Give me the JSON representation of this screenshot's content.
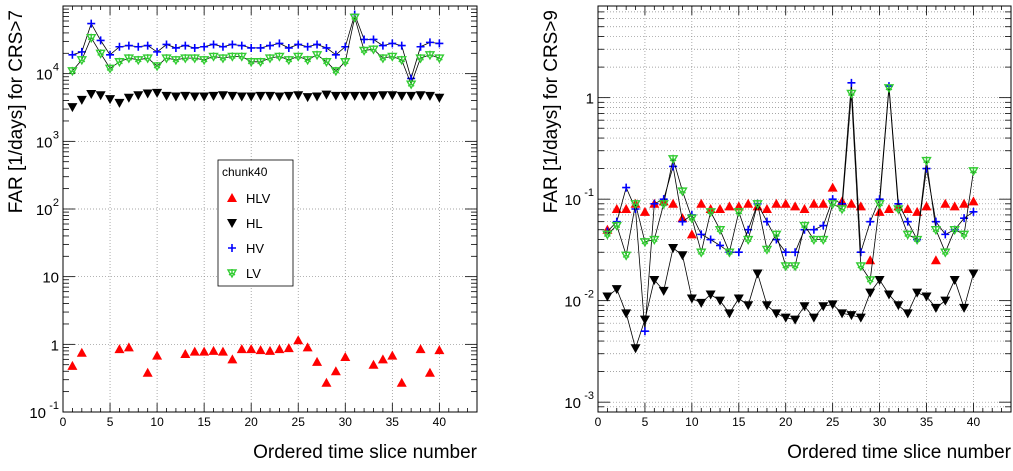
{
  "chart_data": [
    {
      "type": "scatter",
      "ylabel": "FAR [1/days] for CRS>7",
      "xlabel": "Ordered time slice number",
      "xlim": [
        0,
        44
      ],
      "ylim": [
        0.1,
        100000
      ],
      "yscale": "log",
      "x_ticks": [
        0,
        5,
        10,
        15,
        20,
        25,
        30,
        35,
        40
      ],
      "y_tick_labels": [
        {
          "value": 0.1,
          "base": "10",
          "exp": "-1"
        },
        {
          "value": 1,
          "base": "1",
          "exp": ""
        },
        {
          "value": 10,
          "base": "10",
          "exp": ""
        },
        {
          "value": 100,
          "base": "10",
          "exp": "2"
        },
        {
          "value": 1000,
          "base": "10",
          "exp": "3"
        },
        {
          "value": 10000,
          "base": "10",
          "exp": "4"
        }
      ],
      "grid": true,
      "legend": {
        "title": "chunk40",
        "placement": "center",
        "entries": [
          {
            "label": "HLV",
            "color": "#ff0000",
            "marker": "triangle-up"
          },
          {
            "label": "HL",
            "color": "#000000",
            "marker": "triangle-down"
          },
          {
            "label": "HV",
            "color": "#0000ff",
            "marker": "plus"
          },
          {
            "label": "LV",
            "color": "#33cc33",
            "marker": "star-triangle"
          }
        ]
      },
      "series": [
        {
          "name": "HLV",
          "color": "#ff0000",
          "marker": "triangle-up",
          "line": false,
          "x": [
            1,
            2,
            6,
            7,
            9,
            10,
            13,
            14,
            15,
            16,
            17,
            18,
            19,
            20,
            21,
            22,
            23,
            24,
            25,
            26,
            27,
            28,
            29,
            30,
            33,
            34,
            35,
            36,
            38,
            39,
            40
          ],
          "y": [
            0.48,
            0.75,
            0.85,
            0.9,
            0.38,
            0.68,
            0.72,
            0.78,
            0.78,
            0.8,
            0.78,
            0.6,
            0.85,
            0.85,
            0.82,
            0.8,
            0.85,
            0.88,
            1.15,
            0.9,
            0.55,
            0.27,
            0.4,
            0.65,
            0.5,
            0.6,
            0.68,
            0.27,
            0.85,
            0.38,
            0.82
          ]
        },
        {
          "name": "HL",
          "color": "#000000",
          "marker": "triangle-down",
          "line": false,
          "x": [
            1,
            2,
            3,
            4,
            5,
            6,
            7,
            8,
            9,
            10,
            11,
            12,
            13,
            14,
            15,
            16,
            17,
            18,
            19,
            20,
            21,
            22,
            23,
            24,
            25,
            26,
            27,
            28,
            29,
            30,
            31,
            32,
            33,
            34,
            35,
            36,
            37,
            38,
            39,
            40
          ],
          "y": [
            3200,
            4100,
            5000,
            4800,
            4200,
            3700,
            4400,
            4800,
            5100,
            5200,
            4700,
            4600,
            4700,
            4600,
            4600,
            4700,
            4800,
            4700,
            4600,
            4600,
            4700,
            4700,
            4600,
            4700,
            4800,
            4500,
            4600,
            4900,
            4700,
            4700,
            4700,
            4700,
            4700,
            4800,
            4800,
            4700,
            4700,
            4800,
            4700,
            4400
          ]
        },
        {
          "name": "HV",
          "color": "#0000ff",
          "marker": "plus",
          "line": true,
          "x": [
            1,
            2,
            3,
            4,
            5,
            6,
            7,
            8,
            9,
            10,
            11,
            12,
            13,
            14,
            15,
            16,
            17,
            18,
            19,
            20,
            21,
            22,
            23,
            24,
            25,
            26,
            27,
            28,
            29,
            30,
            31,
            32,
            33,
            34,
            35,
            36,
            37,
            38,
            39,
            40
          ],
          "y": [
            19000,
            21000,
            55000,
            31000,
            19000,
            25000,
            26000,
            25000,
            26000,
            21000,
            27000,
            24000,
            26000,
            24000,
            25000,
            27000,
            25000,
            27000,
            26000,
            24000,
            24000,
            26000,
            28000,
            24000,
            27000,
            25000,
            27000,
            24000,
            19000,
            25000,
            75000,
            32000,
            32000,
            26000,
            28000,
            26000,
            8500,
            25000,
            29000,
            28000
          ]
        },
        {
          "name": "LV",
          "color": "#33cc33",
          "marker": "star-triangle",
          "line": true,
          "x": [
            1,
            2,
            3,
            4,
            5,
            6,
            7,
            8,
            9,
            10,
            11,
            12,
            13,
            14,
            15,
            16,
            17,
            18,
            19,
            20,
            21,
            22,
            23,
            24,
            25,
            26,
            27,
            28,
            29,
            30,
            31,
            32,
            33,
            34,
            35,
            36,
            37,
            38,
            39,
            40
          ],
          "y": [
            11000,
            16000,
            34000,
            20000,
            12000,
            15000,
            17000,
            16000,
            17000,
            13000,
            17000,
            16000,
            17000,
            17000,
            16000,
            18000,
            17000,
            18000,
            18000,
            15000,
            15000,
            17000,
            18000,
            16000,
            18000,
            16000,
            19000,
            15000,
            11000,
            15000,
            68000,
            22000,
            23000,
            17000,
            18000,
            16000,
            7000,
            17000,
            19000,
            17000
          ]
        }
      ]
    },
    {
      "type": "scatter",
      "ylabel": "FAR [1/days] for CRS>9",
      "xlabel": "Ordered time slice number",
      "xlim": [
        0,
        44
      ],
      "ylim": [
        0.0008,
        8
      ],
      "yscale": "log",
      "x_ticks": [
        0,
        5,
        10,
        15,
        20,
        25,
        30,
        35,
        40
      ],
      "y_tick_labels": [
        {
          "value": 0.001,
          "base": "10",
          "exp": "-3"
        },
        {
          "value": 0.01,
          "base": "10",
          "exp": "-2"
        },
        {
          "value": 0.1,
          "base": "10",
          "exp": "-1"
        },
        {
          "value": 1,
          "base": "1",
          "exp": ""
        }
      ],
      "grid": true,
      "series": [
        {
          "name": "HLV",
          "color": "#ff0000",
          "marker": "triangle-up",
          "line": false,
          "x": [
            1,
            2,
            3,
            4,
            5,
            6,
            7,
            8,
            9,
            10,
            11,
            12,
            13,
            14,
            15,
            16,
            17,
            18,
            19,
            20,
            21,
            22,
            23,
            24,
            25,
            26,
            27,
            28,
            29,
            30,
            31,
            32,
            33,
            34,
            35,
            36,
            37,
            38,
            39,
            40
          ],
          "y": [
            0.05,
            0.08,
            0.08,
            0.09,
            0.075,
            0.09,
            0.095,
            0.09,
            0.065,
            0.045,
            0.09,
            0.08,
            0.08,
            0.085,
            0.085,
            0.09,
            0.085,
            0.08,
            0.09,
            0.09,
            0.085,
            0.08,
            0.09,
            0.09,
            0.13,
            0.095,
            0.09,
            0.085,
            0.025,
            0.075,
            0.08,
            0.085,
            0.08,
            0.075,
            0.085,
            0.025,
            0.09,
            0.085,
            0.09,
            0.095
          ]
        },
        {
          "name": "HL",
          "color": "#000000",
          "marker": "triangle-down",
          "line": true,
          "x": [
            1,
            2,
            3,
            4,
            5,
            6,
            7,
            8,
            9,
            10,
            11,
            12,
            13,
            14,
            15,
            16,
            17,
            18,
            19,
            20,
            21,
            22,
            23,
            24,
            25,
            26,
            27,
            28,
            29,
            30,
            31,
            32,
            33,
            34,
            35,
            36,
            37,
            38,
            39,
            40
          ],
          "y": [
            0.011,
            0.013,
            0.0075,
            0.0034,
            0.0065,
            0.016,
            0.0125,
            0.033,
            0.028,
            0.0105,
            0.0095,
            0.0115,
            0.01,
            0.0075,
            0.0105,
            0.009,
            0.0185,
            0.009,
            0.0075,
            0.0068,
            0.0065,
            0.0088,
            0.0068,
            0.0088,
            0.0092,
            0.0075,
            0.0072,
            0.0068,
            0.012,
            0.016,
            0.0115,
            0.009,
            0.0075,
            0.012,
            0.011,
            0.0085,
            0.01,
            0.016,
            0.0085,
            0.0185
          ]
        },
        {
          "name": "HV",
          "color": "#0000ff",
          "marker": "plus",
          "line": true,
          "x": [
            1,
            2,
            3,
            4,
            5,
            6,
            7,
            8,
            9,
            10,
            11,
            12,
            13,
            14,
            15,
            16,
            17,
            18,
            19,
            20,
            21,
            22,
            23,
            24,
            25,
            26,
            27,
            28,
            29,
            30,
            31,
            32,
            33,
            34,
            35,
            36,
            37,
            38,
            39,
            40
          ],
          "y": [
            0.048,
            0.06,
            0.13,
            0.08,
            0.005,
            0.09,
            0.1,
            0.21,
            0.06,
            0.07,
            0.045,
            0.04,
            0.035,
            0.03,
            0.03,
            0.05,
            0.09,
            0.06,
            0.04,
            0.03,
            0.03,
            0.05,
            0.05,
            0.055,
            0.1,
            0.09,
            1.4,
            0.03,
            0.06,
            0.1,
            1.3,
            0.09,
            0.06,
            0.04,
            0.2,
            0.06,
            0.045,
            0.05,
            0.065,
            0.075
          ]
        },
        {
          "name": "LV",
          "color": "#33cc33",
          "marker": "star-triangle",
          "line": true,
          "x": [
            1,
            2,
            3,
            4,
            5,
            6,
            7,
            8,
            9,
            10,
            11,
            12,
            13,
            14,
            15,
            16,
            17,
            18,
            19,
            20,
            21,
            22,
            23,
            24,
            25,
            26,
            27,
            28,
            29,
            30,
            31,
            32,
            33,
            34,
            35,
            36,
            37,
            38,
            39,
            40
          ],
          "y": [
            0.045,
            0.055,
            0.028,
            0.09,
            0.038,
            0.04,
            0.09,
            0.25,
            0.12,
            0.065,
            0.03,
            0.075,
            0.05,
            0.03,
            0.075,
            0.04,
            0.09,
            0.032,
            0.045,
            0.022,
            0.022,
            0.055,
            0.04,
            0.04,
            0.09,
            0.08,
            1.1,
            0.022,
            0.016,
            0.09,
            1.25,
            0.08,
            0.045,
            0.04,
            0.24,
            0.05,
            0.03,
            0.05,
            0.045,
            0.19
          ]
        }
      ]
    }
  ]
}
